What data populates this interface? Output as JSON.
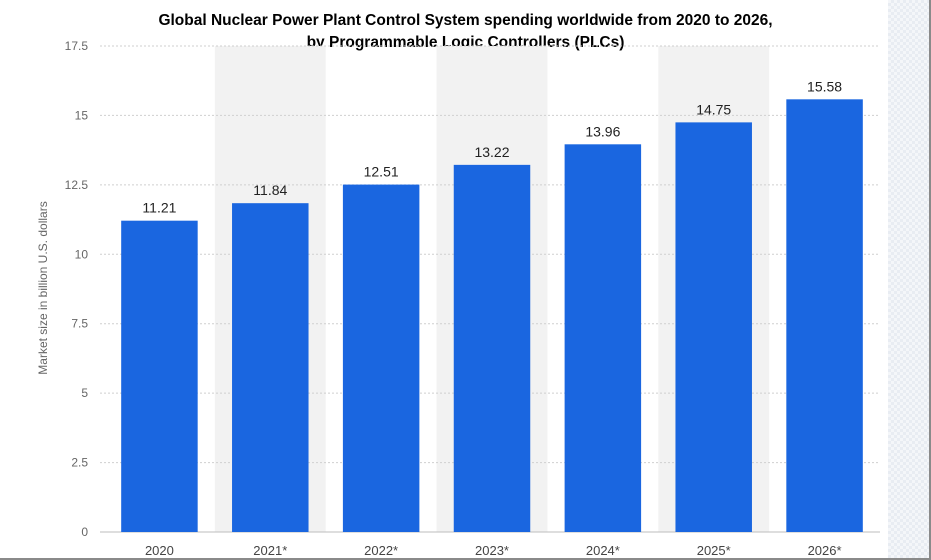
{
  "chart_data": {
    "type": "bar",
    "title_line1": "Global Nuclear Power Plant Control System spending worldwide from 2020 to 2026,",
    "title_line2": "by Programmable Logic Controllers (PLCs)",
    "xlabel": "",
    "ylabel": "Market size in billion U.S. dollars",
    "categories": [
      "2020",
      "2021*",
      "2022*",
      "2023*",
      "2024*",
      "2025*",
      "2026*"
    ],
    "values": [
      11.21,
      11.84,
      12.51,
      13.22,
      13.96,
      14.75,
      15.58
    ],
    "data_labels": [
      "11.21",
      "11.84",
      "12.51",
      "13.22",
      "13.96",
      "14.75",
      "15.58"
    ],
    "y_ticks": [
      "0",
      "2.5",
      "5",
      "7.5",
      "10",
      "12.5",
      "15",
      "17.5"
    ],
    "ylim": [
      0,
      17.5
    ],
    "grid": true,
    "legend": "none",
    "colors": {
      "bar": "#1a66e0",
      "band": "#f2f2f2",
      "axis_text": "#666666",
      "label_text": "#222222"
    }
  }
}
